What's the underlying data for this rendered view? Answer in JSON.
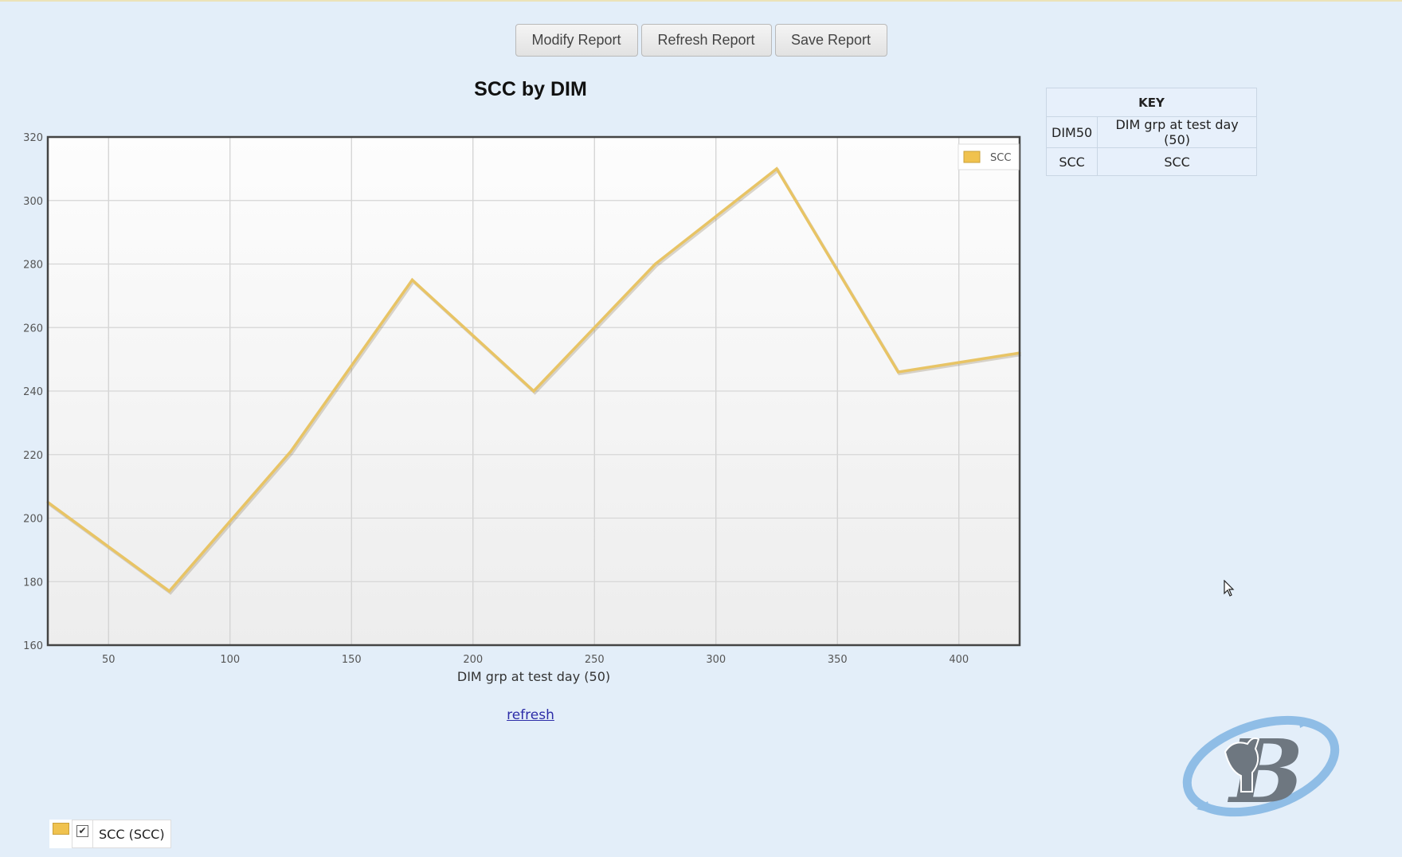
{
  "toolbar": {
    "modify_label": "Modify Report",
    "refresh_label": "Refresh Report",
    "save_label": "Save Report"
  },
  "key": {
    "header": "KEY",
    "rows": [
      {
        "code": "DIM50",
        "description": "DIM grp at test day (50)"
      },
      {
        "code": "SCC",
        "description": "SCC"
      }
    ]
  },
  "refresh_link": "refresh",
  "series_toggle": {
    "label": "SCC (SCC)",
    "checked": true
  },
  "colors": {
    "series": "#e8c465",
    "background": "#e3eef9"
  },
  "chart_data": {
    "type": "line",
    "title": "SCC by DIM",
    "xlabel": "DIM grp at test day (50)",
    "ylabel": "",
    "x": [
      25,
      75,
      125,
      175,
      225,
      275,
      325,
      375,
      425
    ],
    "series": [
      {
        "name": "SCC",
        "values": [
          205,
          177,
          221,
          275,
          240,
          280,
          310,
          246,
          252
        ]
      }
    ],
    "xlim": [
      25,
      425
    ],
    "ylim": [
      160,
      320
    ],
    "xticks": [
      50,
      100,
      150,
      200,
      250,
      300,
      350,
      400
    ],
    "yticks": [
      160,
      180,
      200,
      220,
      240,
      260,
      280,
      300,
      320
    ],
    "grid": true,
    "legend": "top-right"
  }
}
